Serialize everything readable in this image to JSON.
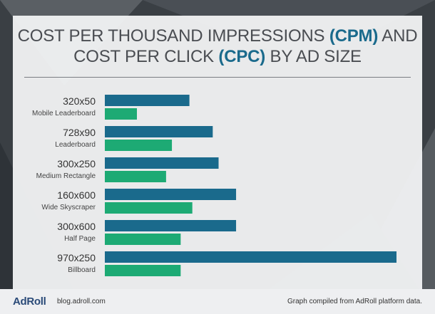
{
  "title": {
    "line1_prefix": "COST PER THOUSAND IMPRESSIONS ",
    "line1_highlight": "(CPM)",
    "line1_suffix": " AND",
    "line2_prefix": "COST PER CLICK ",
    "line2_highlight": "(CPC)",
    "line2_suffix": " BY AD SIZE"
  },
  "colors": {
    "cpm": "#1a6a8c",
    "cpc": "#1daa74",
    "title_highlight": "#1a6a8c",
    "title_text": "#4a4d52",
    "backdrop": "#3a3f44"
  },
  "chart_data": {
    "type": "bar",
    "orientation": "horizontal",
    "grid": false,
    "axes_shown": false,
    "categories": [
      {
        "size": "320x50",
        "name": "Mobile Leaderboard"
      },
      {
        "size": "728x90",
        "name": "Leaderboard"
      },
      {
        "size": "300x250",
        "name": "Medium Rectangle"
      },
      {
        "size": "160x600",
        "name": "Wide Skyscraper"
      },
      {
        "size": "300x600",
        "name": "Half Page"
      },
      {
        "size": "970x250",
        "name": "Billboard"
      }
    ],
    "series": [
      {
        "key": "CPM",
        "color": "#1a6a8c",
        "values": [
          29,
          37,
          39,
          45,
          45,
          100
        ]
      },
      {
        "key": "CPC",
        "color": "#1daa74",
        "values": [
          11,
          23,
          21,
          30,
          26,
          26
        ]
      }
    ],
    "value_unit": "relative bar length, percent of the longest bar",
    "xlim": [
      0,
      100
    ]
  },
  "footer": {
    "logo": "AdRoll",
    "blog": "blog.adroll.com",
    "note": "Graph compiled from AdRoll platform data."
  }
}
